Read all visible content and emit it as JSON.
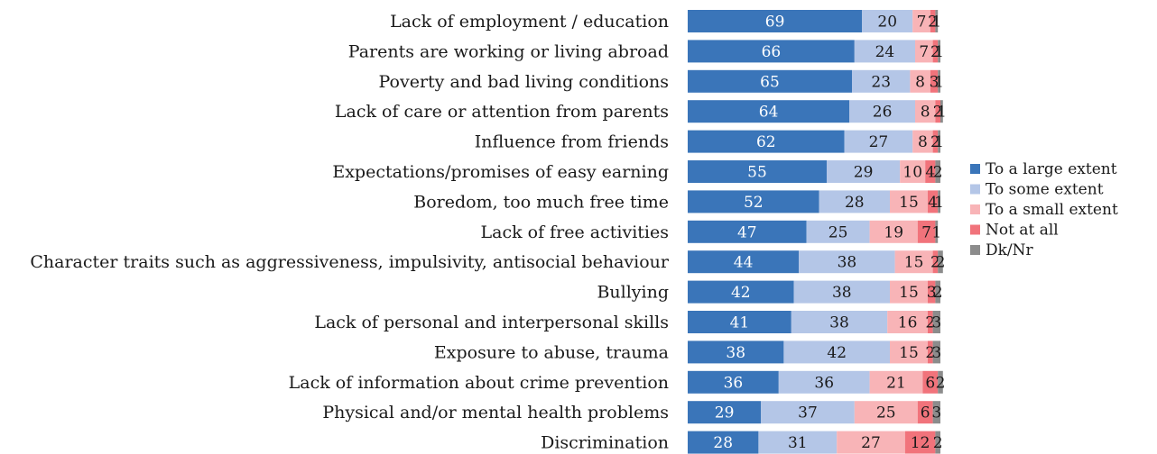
{
  "chart_data": {
    "type": "bar",
    "orientation": "horizontal",
    "stacked": true,
    "title": "",
    "xlabel": "",
    "ylabel": "",
    "xlim": [
      0,
      100
    ],
    "grid": false,
    "legend_position": "right",
    "categories": [
      "Lack of employment / education",
      "Parents are working or living abroad",
      "Poverty and bad living conditions",
      "Lack of care or attention from parents",
      "Influence from friends",
      "Expectations/promises of easy earning",
      "Boredom, too much free time",
      "Lack of free activities",
      "Character traits such as aggressiveness, impulsivity, antisocial behaviour",
      "Bullying",
      "Lack of personal and interpersonal skills",
      "Exposure to abuse, trauma",
      "Lack of information about crime prevention",
      "Physical and/or mental health problems",
      "Discrimination"
    ],
    "series": [
      {
        "name": "To a large extent",
        "color": "#3a75b9",
        "label_color": "#ffffff",
        "values": [
          69,
          66,
          65,
          64,
          62,
          55,
          52,
          47,
          44,
          42,
          41,
          38,
          36,
          29,
          28
        ]
      },
      {
        "name": "To some extent",
        "color": "#b4c6e7",
        "label_color": "#1a1a1a",
        "values": [
          20,
          24,
          23,
          26,
          27,
          29,
          28,
          25,
          38,
          38,
          38,
          42,
          36,
          37,
          31
        ]
      },
      {
        "name": "To a small extent",
        "color": "#f8b4b7",
        "label_color": "#1a1a1a",
        "values": [
          7,
          7,
          8,
          8,
          8,
          10,
          15,
          19,
          15,
          15,
          16,
          15,
          21,
          25,
          27
        ]
      },
      {
        "name": "Not at all",
        "color": "#f1737b",
        "label_color": "#1a1a1a",
        "values": [
          2,
          2,
          3,
          2,
          2,
          4,
          4,
          7,
          2,
          3,
          2,
          2,
          6,
          6,
          12
        ]
      },
      {
        "name": "Dk/Nr",
        "color": "#8c8c8c",
        "label_color": "#1a1a1a",
        "values": [
          1,
          1,
          1,
          1,
          1,
          2,
          1,
          1,
          2,
          2,
          3,
          3,
          2,
          3,
          2
        ]
      }
    ]
  }
}
